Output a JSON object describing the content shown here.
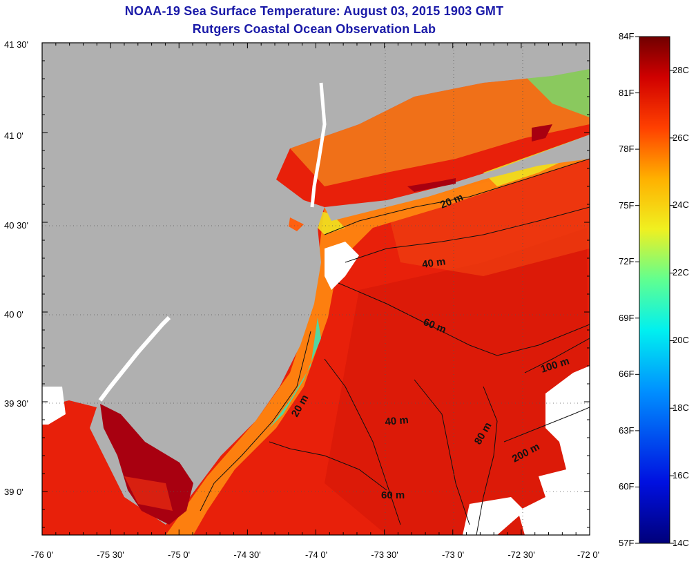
{
  "title": {
    "line1": "NOAA-19 Sea Surface Temperature:  August 03, 2015 1903 GMT",
    "line2": "Rutgers Coastal Ocean Observation Lab"
  },
  "colors": {
    "title": "#1a1aa8",
    "land": "#b0b0b0",
    "cloud": "#ffffff",
    "warm_water": "#e8200a",
    "hot_water": "#a80010",
    "cool_water": "#f0e020"
  },
  "map": {
    "lat_labels": [
      "41 30'",
      "41 0'",
      "40 30'",
      "40 0'",
      "39 30'",
      "39 0'"
    ],
    "lon_labels": [
      "-76 0'",
      "-75 30'",
      "-75 0'",
      "-74 30'",
      "-74 0'",
      "-73 30'",
      "-73 0'",
      "-72 30'",
      "-72 0'"
    ],
    "depth_labels": [
      "20 m",
      "40 m",
      "60 m",
      "20 m",
      "40 m",
      "60 m",
      "80 m",
      "100 m",
      "200 m"
    ]
  },
  "colorbar": {
    "f_labels": [
      "84F",
      "81F",
      "78F",
      "75F",
      "72F",
      "69F",
      "66F",
      "63F",
      "60F",
      "57F"
    ],
    "c_labels": [
      "28C",
      "26C",
      "24C",
      "22C",
      "20C",
      "18C",
      "16C",
      "14C"
    ]
  }
}
